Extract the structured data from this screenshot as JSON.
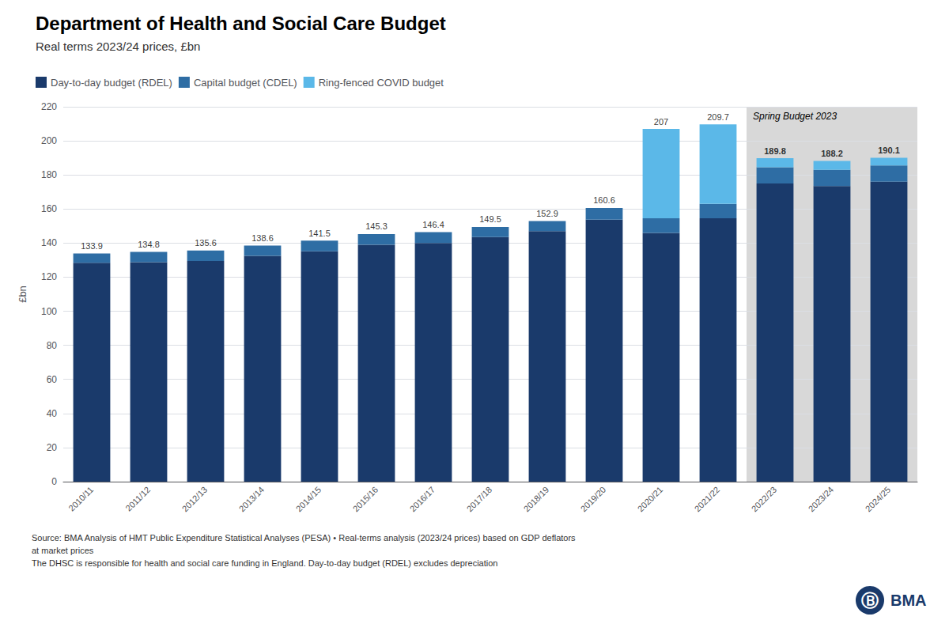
{
  "chart_data": {
    "type": "bar",
    "stacked": true,
    "title": "Department of Health and Social Care Budget",
    "subtitle": "Real terms 2023/24 prices, £bn",
    "ylabel": "£bn",
    "categories": [
      "2010/11",
      "2011/12",
      "2012/13",
      "2013/14",
      "2014/15",
      "2015/16",
      "2016/17",
      "2017/18",
      "2018/19",
      "2019/20",
      "2020/21",
      "2021/22",
      "2022/23",
      "2023/24",
      "2024/25"
    ],
    "series": [
      {
        "name": "Day-to-day budget (RDEL)",
        "color": "#1a3a6b",
        "values": [
          128.5,
          128.8,
          129.5,
          132.5,
          135.2,
          139.0,
          140.0,
          143.5,
          147.0,
          153.8,
          146.0,
          154.5,
          175.0,
          173.5,
          176.0
        ]
      },
      {
        "name": "Capital budget (CDEL)",
        "color": "#2e6da4",
        "values": [
          5.4,
          6.0,
          6.1,
          6.1,
          6.3,
          6.3,
          6.4,
          6.0,
          5.9,
          6.8,
          8.5,
          8.5,
          9.5,
          9.5,
          9.5
        ]
      },
      {
        "name": "Ring-fenced COVID budget",
        "color": "#5bb8e8",
        "values": [
          0,
          0,
          0,
          0,
          0,
          0,
          0,
          0,
          0,
          0,
          52.5,
          46.7,
          5.3,
          5.2,
          4.6
        ]
      }
    ],
    "totals": [
      133.9,
      134.8,
      135.6,
      138.6,
      141.5,
      145.3,
      146.4,
      149.5,
      152.9,
      160.6,
      207,
      209.7,
      189.8,
      188.2,
      190.1
    ],
    "shaded_region": {
      "start": "2022/23",
      "end": "2024/25",
      "label": "Spring Budget 2023",
      "color": "#d8d8d8"
    },
    "ylim": [
      0,
      220
    ],
    "yticks": [
      0,
      20,
      40,
      60,
      80,
      100,
      120,
      140,
      160,
      180,
      200,
      220
    ],
    "grid": true,
    "legend": "upper left",
    "source": "Source: BMA Analysis of HMT Public Expenditure Statistical Analyses (PESA) • Real-terms analysis (2023/24 prices) based on GDP deflators\nat market prices\nThe DHSC is responsible for health and social care funding in England. Day-to-day budget (RDEL) excludes depreciation",
    "logo": {
      "symbol": "Ⓑ",
      "text": "BMA",
      "color": "#1a3a6b"
    }
  }
}
